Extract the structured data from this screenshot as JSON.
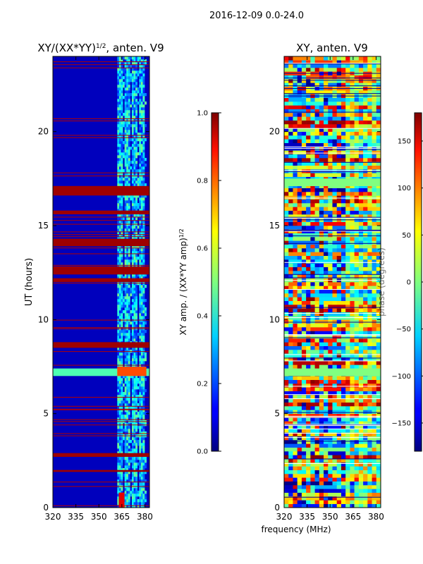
{
  "suptitle": "2016-12-09 0.0-24.0",
  "shared_xlabel": "frequency (MHz)",
  "colors": {
    "low": "#00008f",
    "mid": "#7fff7f",
    "high": "#800000",
    "background": "#ffffff"
  },
  "chart_data": [
    {
      "type": "heatmap",
      "title_main": "XY/(XX*YY)",
      "title_sup": "1/2",
      "title_tail": ", anten. V9",
      "xlabel": "",
      "ylabel": "UT (hours)",
      "xlim": [
        320,
        383
      ],
      "ylim": [
        0,
        24
      ],
      "x_ticks": [
        320,
        335,
        350,
        365,
        380
      ],
      "y_ticks": [
        0,
        5,
        10,
        15,
        20
      ],
      "colorbar": {
        "label_main": "XY amp. / (XX*YY amp)",
        "label_sup": "1/2",
        "range": [
          0.0,
          1.0
        ],
        "ticks": [
          "0.0",
          "0.2",
          "0.4",
          "0.6",
          "0.8",
          "1.0"
        ],
        "tick_values": [
          0.0,
          0.2,
          0.4,
          0.6,
          0.8,
          1.0
        ]
      },
      "flagged_bands_hours": [
        [
          16.6,
          17.1
        ],
        [
          15.6,
          15.8
        ],
        [
          13.9,
          14.3
        ],
        [
          12.4,
          12.8
        ],
        [
          12.0,
          12.2
        ],
        [
          8.5,
          8.8
        ],
        [
          2.7,
          2.9
        ],
        [
          1.9,
          2.0
        ]
      ],
      "bright_band_hours": [
        7.0,
        7.4
      ],
      "active_freq_range_MHz": [
        362,
        381
      ]
    },
    {
      "type": "heatmap",
      "title_main": "XY, anten. V9",
      "xlabel": "frequency (MHz)",
      "ylabel": "",
      "xlim": [
        320,
        383
      ],
      "ylim": [
        0,
        24
      ],
      "x_ticks": [
        320,
        335,
        350,
        365,
        380
      ],
      "y_ticks": [
        0,
        5,
        10,
        15,
        20
      ],
      "colorbar": {
        "label_main": "phase (degrees)",
        "range": [
          -180,
          180
        ],
        "ticks": [
          "−150",
          "−100",
          "−50",
          "0",
          "50",
          "100",
          "150"
        ],
        "tick_values": [
          -150,
          -100,
          -50,
          0,
          50,
          100,
          150
        ]
      },
      "flagged_bands_hours": [
        [
          17.1,
          17.5
        ],
        [
          7.0,
          7.4
        ]
      ]
    }
  ]
}
